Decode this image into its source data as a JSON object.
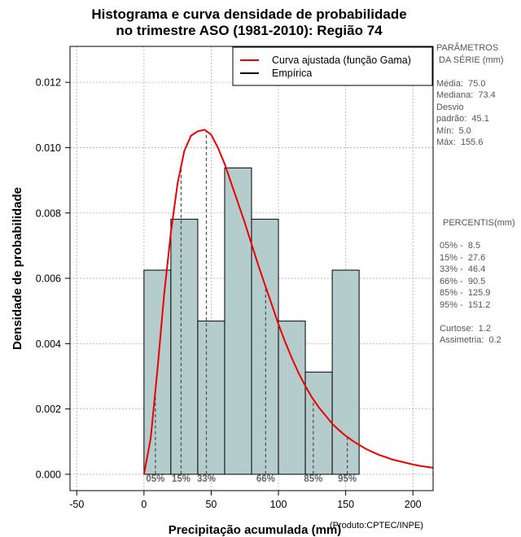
{
  "title_line1": "Histograma e curva densidade de probabilidade",
  "title_line2": "no trimestre ASO (1981-2010): Região 74",
  "credit": "(Produto:CPTEC/INPE)",
  "colors": {
    "bar_fill": "#b4cccc",
    "fitted_curve": "#ee0000",
    "empirical": "#000000",
    "percentile_line": "#555555",
    "grid": "#b0b0b0"
  },
  "parameters": {
    "heading_line1": "PARÂMETROS",
    "heading_line2": " DA SÉRIE (mm)",
    "media": "Média:  75.0",
    "mediana": "Mediana:  73.4",
    "desvio_line1": "Desvio",
    "desvio_line2": "padrão:  45.1",
    "min": "Mín:  5.0",
    "max": "Máx:  155.6"
  },
  "percentiles_panel": {
    "heading": "PERCENTIS(mm)",
    "p05": "05% -  8.5",
    "p15": "15% -  27.6",
    "p33": "33% -  46.4",
    "p66": "66% -  90.5",
    "p85": "85% -  125.9",
    "p95": "95% -  151.2",
    "curtose": "Curtose:  1.2",
    "assimetria": "Assimetria:  0.2"
  },
  "chart_data": {
    "type": "bar",
    "xlabel": "Precipitação acumulada (mm)",
    "ylabel": "Densidade de probabilidade",
    "xlim": [
      -55,
      215
    ],
    "ylim": [
      -0.0005,
      0.0131
    ],
    "x_ticks": [
      -50,
      0,
      50,
      100,
      150,
      200
    ],
    "x_tick_labels": [
      "-50",
      "0",
      "50",
      "100",
      "150",
      "200"
    ],
    "y_ticks": [
      0.0,
      0.002,
      0.004,
      0.006,
      0.008,
      0.01,
      0.012
    ],
    "y_tick_labels": [
      "0.000",
      "0.002",
      "0.004",
      "0.006",
      "0.008",
      "0.010",
      "0.012"
    ],
    "grid": true,
    "bins": [
      {
        "start": 0,
        "end": 20,
        "density": 0.00625
      },
      {
        "start": 20,
        "end": 40,
        "density": 0.00781
      },
      {
        "start": 40,
        "end": 60,
        "density": 0.00469
      },
      {
        "start": 60,
        "end": 80,
        "density": 0.00938
      },
      {
        "start": 80,
        "end": 100,
        "density": 0.00781
      },
      {
        "start": 100,
        "end": 120,
        "density": 0.00469
      },
      {
        "start": 120,
        "end": 140,
        "density": 0.00313
      },
      {
        "start": 140,
        "end": 160,
        "density": 0.00625
      }
    ],
    "fitted_curve": {
      "name": "Curva ajustada (função Gama)",
      "x": [
        0,
        5,
        10,
        15,
        20,
        25,
        30,
        35,
        40,
        45,
        50,
        55,
        60,
        65,
        70,
        75,
        80,
        85,
        90,
        95,
        100,
        105,
        110,
        115,
        120,
        125,
        130,
        135,
        140,
        145,
        150,
        155,
        160,
        165,
        170,
        175,
        180,
        185,
        190,
        195,
        200,
        205,
        210,
        215
      ],
      "y": [
        0.0,
        0.0011,
        0.0032,
        0.0055,
        0.0074,
        0.0089,
        0.0099,
        0.01037,
        0.0105,
        0.01055,
        0.0104,
        0.01,
        0.0095,
        0.0089,
        0.0083,
        0.0077,
        0.00705,
        0.0064,
        0.0058,
        0.0052,
        0.0046,
        0.00405,
        0.00355,
        0.0031,
        0.0027,
        0.00235,
        0.00205,
        0.0018,
        0.00155,
        0.00135,
        0.00118,
        0.00103,
        0.0009,
        0.00078,
        0.00068,
        0.00059,
        0.00052,
        0.00045,
        0.0004,
        0.00035,
        0.0003,
        0.00026,
        0.00023,
        0.0002
      ]
    },
    "empirical_legend": "Empírica",
    "percentiles": [
      {
        "label": "05%",
        "value": 8.5
      },
      {
        "label": "15%",
        "value": 27.6
      },
      {
        "label": "33%",
        "value": 46.4
      },
      {
        "label": "66%",
        "value": 90.5
      },
      {
        "label": "85%",
        "value": 125.9
      },
      {
        "label": "95%",
        "value": 151.2
      }
    ],
    "legend_position": "top-right"
  }
}
